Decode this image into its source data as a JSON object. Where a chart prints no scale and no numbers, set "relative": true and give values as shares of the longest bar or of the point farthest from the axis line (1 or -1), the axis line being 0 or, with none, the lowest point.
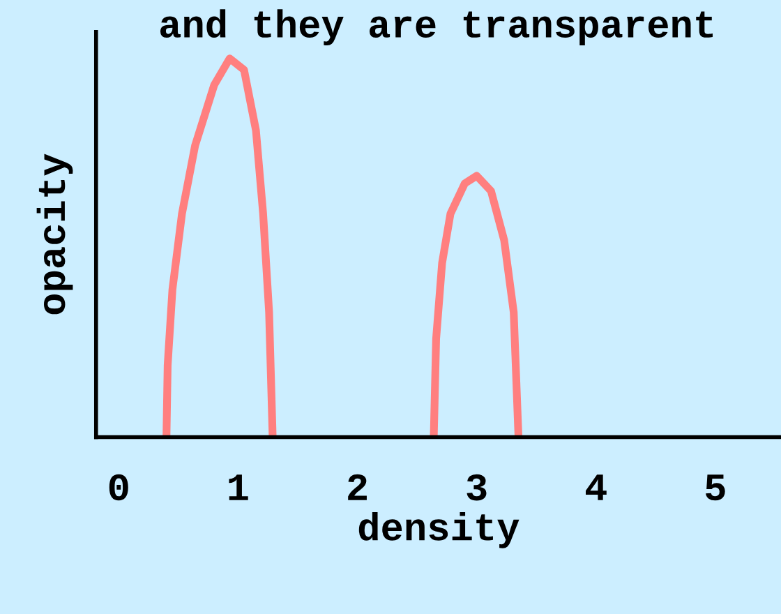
{
  "chart_data": {
    "type": "line",
    "title": "and they are transparent",
    "xlabel": "density",
    "ylabel": "opacity",
    "relative": true,
    "xlim": [
      -0.19,
      5.55
    ],
    "xticks": [
      0,
      1,
      2,
      3,
      4,
      5
    ],
    "grid": false,
    "marker": "none",
    "line_style": "solid",
    "series": [
      {
        "color": "#ff7f7f",
        "x": [
          0.4,
          0.41,
          0.45,
          0.53,
          0.64,
          0.8,
          0.93,
          1.05,
          1.15,
          1.21,
          1.26,
          1.29
        ],
        "values": [
          0,
          0.19,
          0.39,
          0.59,
          0.77,
          0.93,
          1.0,
          0.97,
          0.81,
          0.59,
          0.33,
          0
        ]
      },
      {
        "color": "#ff7f7f",
        "x": [
          2.64,
          2.66,
          2.71,
          2.78,
          2.9,
          3.0,
          3.12,
          3.23,
          3.31,
          3.35
        ],
        "values": [
          0,
          0.26,
          0.46,
          0.59,
          0.67,
          0.69,
          0.65,
          0.52,
          0.33,
          0
        ]
      }
    ]
  }
}
